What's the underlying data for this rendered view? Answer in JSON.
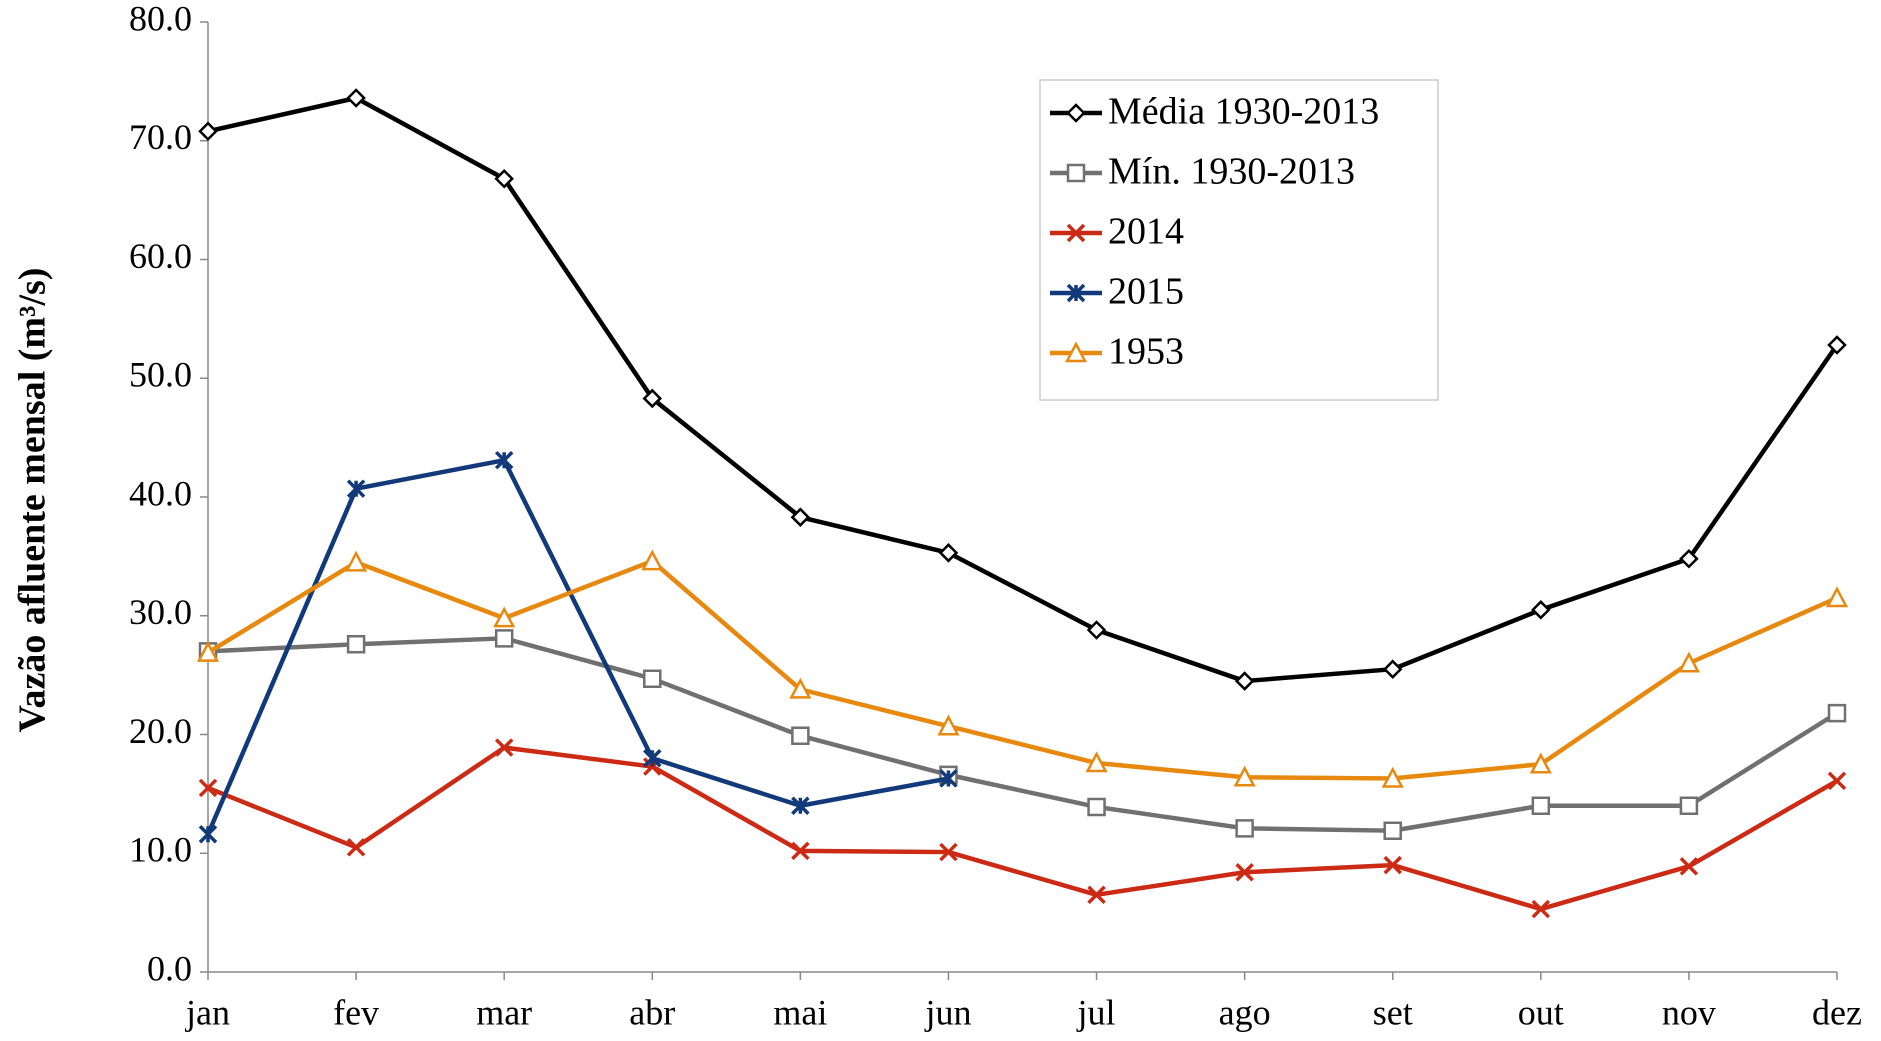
{
  "chart_data": {
    "type": "line",
    "y_label": "Vazão afluente mensal (m³/s)",
    "categories": [
      "jan",
      "fev",
      "mar",
      "abr",
      "mai",
      "jun",
      "jul",
      "ago",
      "set",
      "out",
      "nov",
      "dez"
    ],
    "ylim": [
      0,
      80
    ],
    "yticks": [
      {
        "value": 0,
        "label": "0.0"
      },
      {
        "value": 10,
        "label": "10.0"
      },
      {
        "value": 20,
        "label": "20.0"
      },
      {
        "value": 30,
        "label": "30.0"
      },
      {
        "value": 40,
        "label": "40.0"
      },
      {
        "value": 50,
        "label": "50.0"
      },
      {
        "value": 60,
        "label": "60.0"
      },
      {
        "value": 70,
        "label": "70.0"
      },
      {
        "value": 80,
        "label": "80.0"
      }
    ],
    "grid": false,
    "legend": "top-right",
    "series": [
      {
        "name": "Média 1930-2013",
        "color": "#000000",
        "marker": "diamond",
        "values": [
          70.8,
          73.6,
          66.8,
          48.3,
          38.3,
          35.3,
          28.8,
          24.5,
          25.5,
          30.5,
          34.8,
          52.8
        ]
      },
      {
        "name": "Mín. 1930-2013",
        "color": "#707070",
        "marker": "square",
        "values": [
          27.0,
          27.6,
          28.1,
          24.7,
          19.9,
          16.6,
          13.9,
          12.1,
          11.9,
          14.0,
          14.0,
          21.8
        ]
      },
      {
        "name": "2014",
        "color": "#cc2a14",
        "marker": "x",
        "values": [
          15.5,
          10.5,
          18.9,
          17.3,
          10.2,
          10.1,
          6.5,
          8.4,
          9.0,
          5.3,
          8.9,
          16.1
        ]
      },
      {
        "name": "2015",
        "color": "#123a7a",
        "marker": "star",
        "values": [
          11.6,
          40.7,
          43.1,
          18.0,
          14.0,
          16.3,
          null,
          null,
          null,
          null,
          null,
          null
        ]
      },
      {
        "name": "1953",
        "color": "#e8890f",
        "marker": "triangle",
        "values": [
          26.9,
          34.5,
          29.8,
          34.6,
          23.8,
          20.7,
          17.6,
          16.4,
          16.3,
          17.5,
          26.0,
          31.5
        ]
      }
    ]
  }
}
